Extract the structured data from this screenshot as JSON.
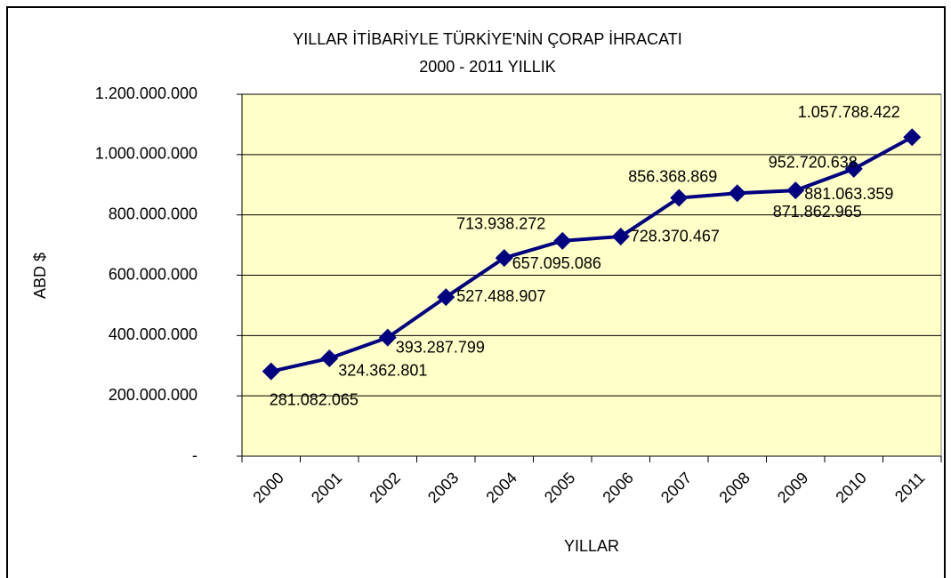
{
  "chart_data": {
    "type": "line",
    "title": [
      "YILLAR İTİBARİYLE TÜRKİYE'NİN ÇORAP İHRACATI",
      "2000 - 2011 YILLIK"
    ],
    "x_label": "YILLAR",
    "y_label": "ABD $",
    "categories": [
      "2000",
      "2001",
      "2002",
      "2003",
      "2004",
      "2005",
      "2006",
      "2007",
      "2008",
      "2009",
      "2010",
      "2011"
    ],
    "values": [
      281082065,
      324362801,
      393287799,
      527488907,
      657095086,
      713938272,
      728370467,
      856368869,
      871862965,
      881063359,
      952720638,
      1057788422
    ],
    "value_labels": [
      "281.082.065",
      "324.362.801",
      "393.287.799",
      "527.488.907",
      "657.095.086",
      "713.938.272",
      "728.370.467",
      "856.368.869",
      "871.862.965",
      "881.063.359",
      "952.720.638",
      "1.057.788.422"
    ],
    "color": "#000080",
    "ylim": [
      0,
      1200000000
    ],
    "yticks": [
      {
        "value": 0,
        "label": "-"
      },
      {
        "value": 200000000,
        "label": "200.000.000"
      },
      {
        "value": 400000000,
        "label": "400.000.000"
      },
      {
        "value": 600000000,
        "label": "600.000.000"
      },
      {
        "value": 800000000,
        "label": "800.000.000"
      },
      {
        "value": 1000000000,
        "label": "1.000.000.000"
      },
      {
        "value": 1200000000,
        "label": "1.200.000.000"
      }
    ],
    "grid": true
  }
}
